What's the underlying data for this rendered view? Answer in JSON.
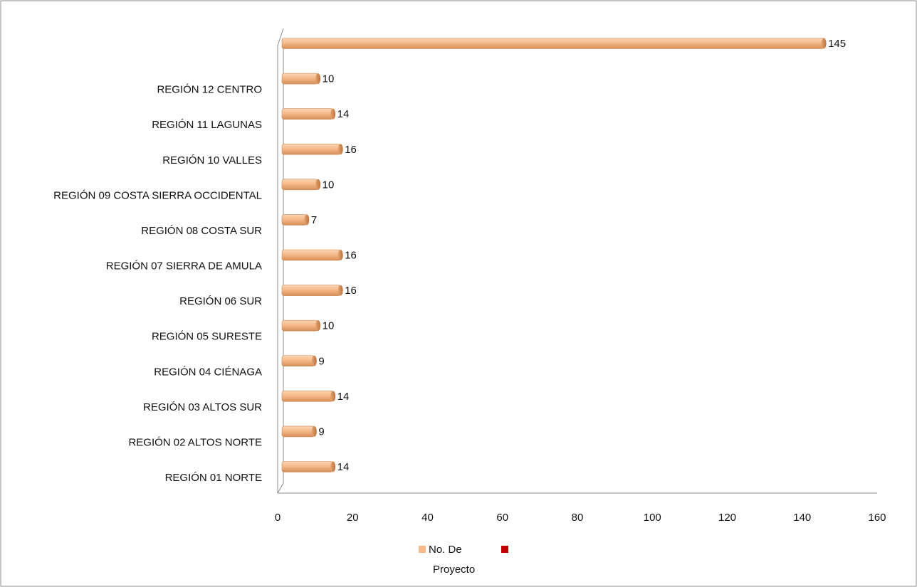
{
  "chart_data": {
    "type": "bar",
    "orientation": "horizontal",
    "title": "",
    "xlabel": "",
    "ylabel": "",
    "categories": [
      "REGIÓN 01 NORTE",
      "REGIÓN 02 ALTOS NORTE",
      "REGIÓN 03 ALTOS SUR",
      "REGIÓN 04 CIÉNAGA",
      "REGIÓN 05 SURESTE",
      "REGIÓN 06 SUR",
      "REGIÓN 07 SIERRA DE AMULA",
      "REGIÓN 08 COSTA SUR",
      "REGIÓN 09 COSTA SIERRA OCCIDENTAL",
      "REGIÓN 10 VALLES",
      "REGIÓN 11 LAGUNAS",
      "REGIÓN 12 CENTRO",
      ""
    ],
    "series": [
      {
        "name": "No. De Proyecto",
        "color": "#f5b98a",
        "values": [
          14,
          9,
          14,
          9,
          10,
          16,
          16,
          7,
          10,
          16,
          14,
          10,
          145
        ]
      }
    ],
    "xlim": [
      0,
      160
    ],
    "xticks": [
      0,
      20,
      40,
      60,
      80,
      100,
      120,
      140,
      160
    ],
    "grid": false,
    "legend": {
      "position": "bottom",
      "entries": [
        {
          "label": "No. De Proyecto",
          "color": "#f5b98a"
        },
        {
          "label": "",
          "color": "#c00000"
        }
      ]
    }
  }
}
